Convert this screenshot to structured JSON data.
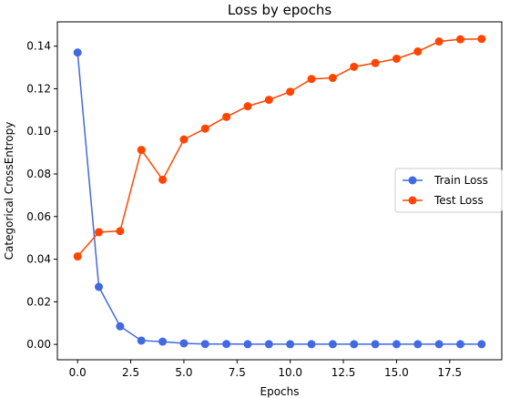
{
  "chart_data": {
    "type": "line",
    "title": "Loss by epochs",
    "xlabel": "Epochs",
    "ylabel": "Categorical CrossEntropy",
    "xlim": [
      -0.95,
      19.95
    ],
    "ylim": [
      -0.0072,
      0.1514
    ],
    "xticks": [
      0,
      2.5,
      5,
      7.5,
      10,
      12.5,
      15,
      17.5
    ],
    "xtick_labels": [
      "0.0",
      "2.5",
      "5.0",
      "7.5",
      "10.0",
      "12.5",
      "15.0",
      "17.5"
    ],
    "yticks": [
      0,
      0.02,
      0.04,
      0.06,
      0.08,
      0.1,
      0.12,
      0.14
    ],
    "ytick_labels": [
      "0.00",
      "0.02",
      "0.04",
      "0.06",
      "0.08",
      "0.10",
      "0.12",
      "0.14"
    ],
    "x": [
      0,
      1,
      2,
      3,
      4,
      5,
      6,
      7,
      8,
      9,
      10,
      11,
      12,
      13,
      14,
      15,
      16,
      17,
      18,
      19
    ],
    "series": [
      {
        "name": "Train Loss",
        "color": "#4169e1",
        "values": [
          0.137,
          0.027,
          0.0085,
          0.0018,
          0.0013,
          0.0005,
          0.0002,
          0.0002,
          0.0001,
          0.0001,
          0.0001,
          0.0001,
          0.0001,
          0.0001,
          0.0001,
          0.0001,
          0.0001,
          0.0001,
          0.0001,
          0.0001
        ]
      },
      {
        "name": "Test Loss",
        "color": "#ff4500",
        "values": [
          0.0413,
          0.0527,
          0.0532,
          0.0913,
          0.0773,
          0.0962,
          0.1013,
          0.1068,
          0.1118,
          0.1148,
          0.1186,
          0.1246,
          0.1251,
          0.1303,
          0.1321,
          0.1341,
          0.1375,
          0.1422,
          0.1432,
          0.1434
        ]
      }
    ],
    "grid": false,
    "legend_position": "center-right"
  }
}
